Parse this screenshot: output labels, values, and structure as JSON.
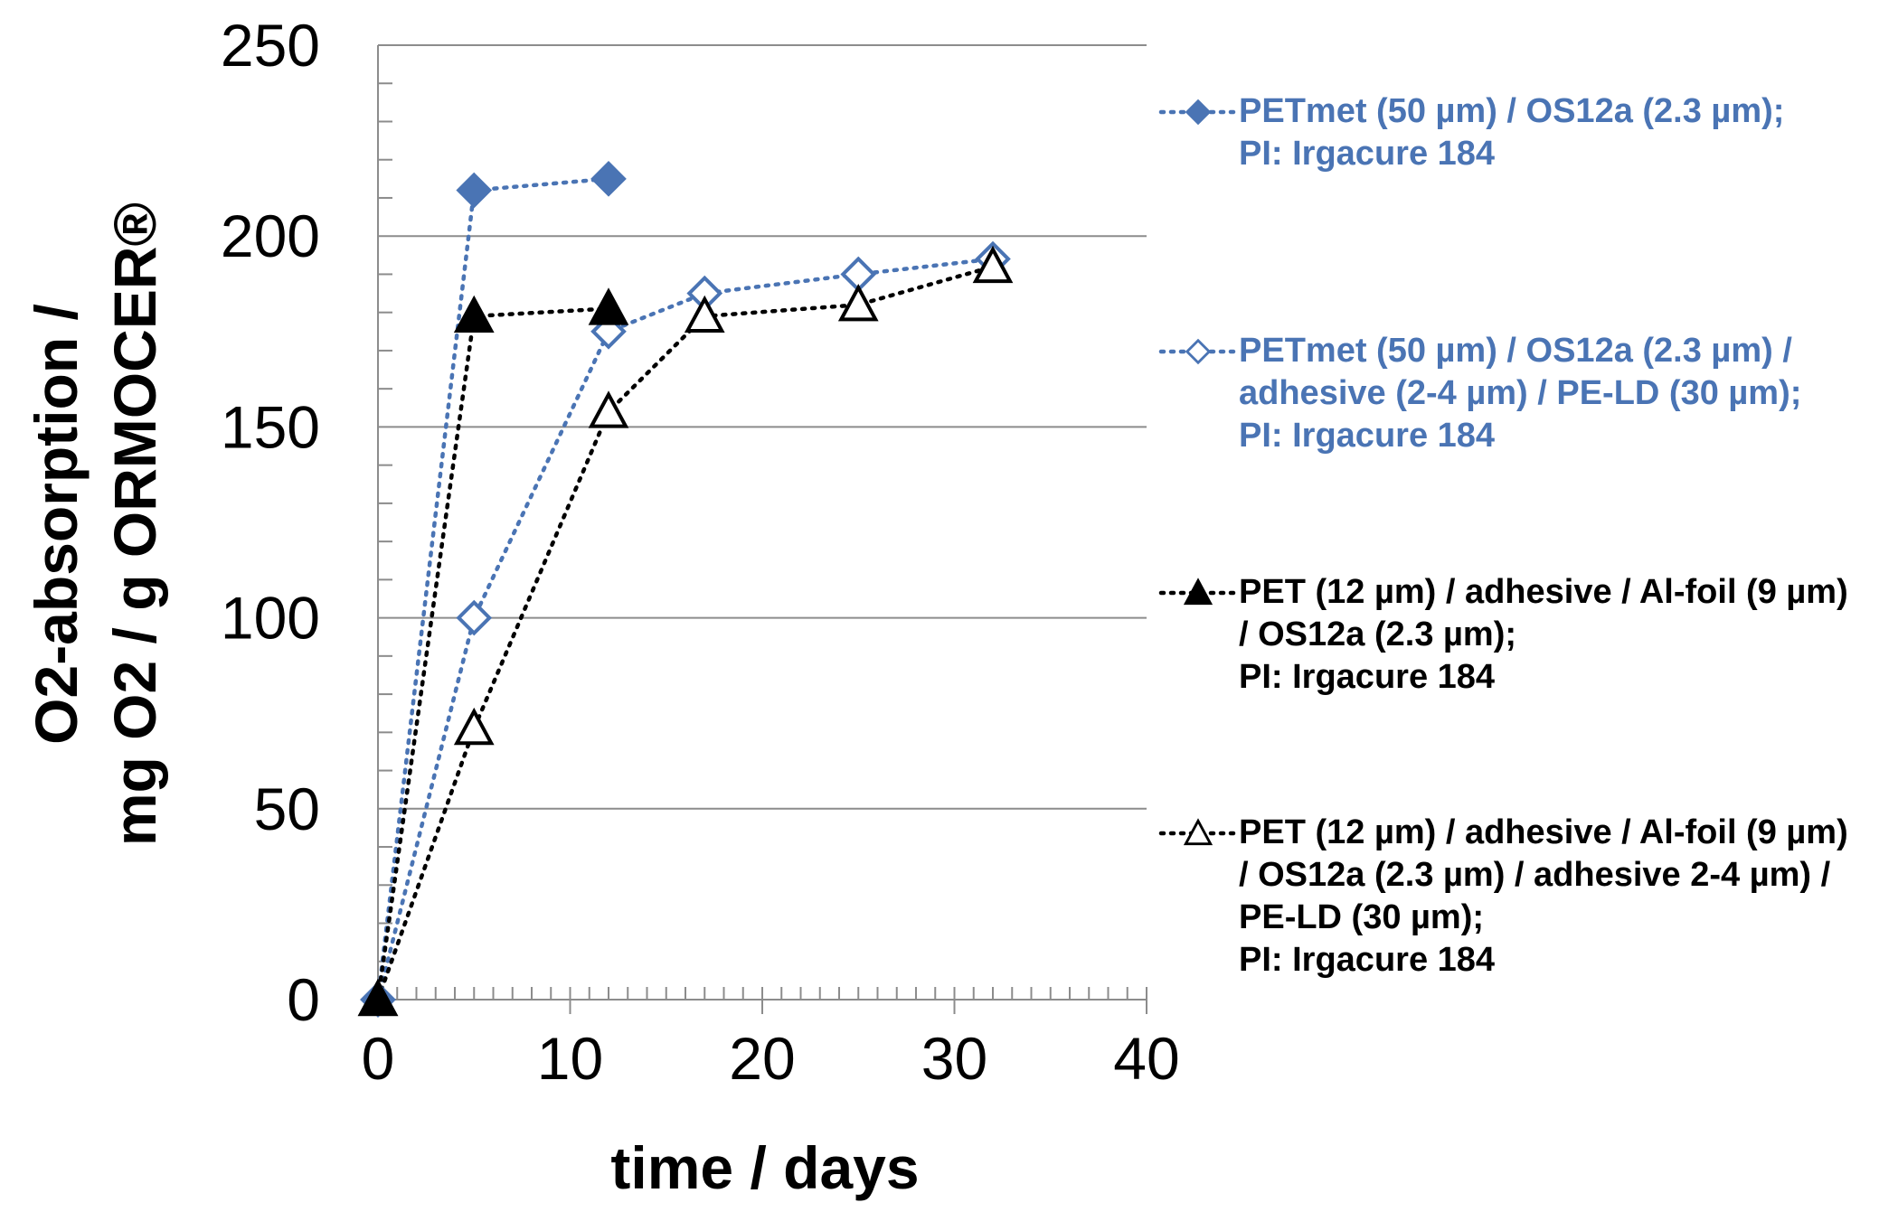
{
  "chart_data": {
    "type": "line",
    "xlabel": "time / days",
    "ylabel_line1": "O2-absorption /",
    "ylabel_line2": "mg O2 / g ORMOCER®",
    "xlim": [
      0,
      40
    ],
    "ylim": [
      0,
      250
    ],
    "x_ticks": [
      "0",
      "10",
      "20",
      "30",
      "40"
    ],
    "y_ticks": [
      "0",
      "50",
      "100",
      "150",
      "200",
      "250"
    ],
    "grid": "horizontal",
    "legend_placement": "right",
    "series": [
      {
        "name": "PETmet (50 µm) / OS12a (2.3 µm);\nPI: Irgacure 184",
        "color": "#4a74b4",
        "marker": "diamond-filled",
        "x": [
          0,
          5,
          12
        ],
        "y": [
          0,
          212,
          215
        ]
      },
      {
        "name": "PETmet (50 µm) / OS12a (2.3 µm) /\nadhesive (2-4 µm) / PE-LD (30 µm);\nPI: Irgacure 184",
        "color": "#4a74b4",
        "marker": "diamond-open",
        "x": [
          0,
          5,
          12,
          17,
          25,
          32
        ],
        "y": [
          0,
          100,
          175,
          185,
          190,
          194
        ]
      },
      {
        "name": "PET (12 µm) / adhesive / Al-foil (9 µm)\n/ OS12a (2.3 µm);\nPI: Irgacure 184",
        "color": "#000000",
        "marker": "triangle-filled",
        "x": [
          0,
          5,
          12
        ],
        "y": [
          0,
          179,
          181
        ]
      },
      {
        "name": "PET (12 µm) / adhesive / Al-foil (9 µm)\n/ OS12a (2.3 µm) / adhesive 2-4 µm) /\nPE-LD (30 µm);\nPI: Irgacure 184",
        "color": "#000000",
        "marker": "triangle-open",
        "x": [
          0,
          5,
          12,
          17,
          25,
          32
        ],
        "y": [
          0,
          71,
          154,
          179,
          182,
          192
        ]
      }
    ]
  }
}
